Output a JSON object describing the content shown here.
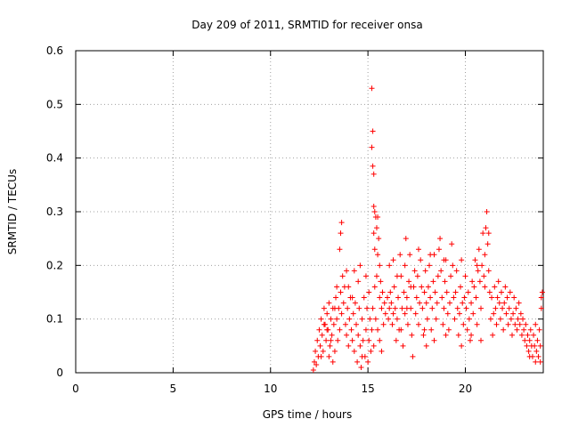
{
  "chart_data": {
    "type": "scatter",
    "title": "Day 209 of 2011, SRMTID for receiver onsa",
    "xlabel": "GPS time / hours",
    "ylabel": "SRMTID / TECUs",
    "xlim": [
      0,
      24
    ],
    "ylim": [
      0,
      0.6
    ],
    "x_ticks": [
      0,
      5,
      10,
      15,
      20
    ],
    "y_ticks": [
      0,
      0.1,
      0.2,
      0.3,
      0.4,
      0.5,
      0.6
    ],
    "x_tick_labels": [
      "0",
      "5",
      "10",
      "15",
      "20"
    ],
    "y_tick_labels": [
      "0",
      "0.1",
      "0.2",
      "0.3",
      "0.4",
      "0.5",
      "0.6"
    ],
    "grid": true,
    "marker": "+",
    "color": "#ff0000",
    "series": [
      {
        "points": [
          [
            12.2,
            0.005
          ],
          [
            12.25,
            0.02
          ],
          [
            12.3,
            0.04
          ],
          [
            12.35,
            0.015
          ],
          [
            12.4,
            0.06
          ],
          [
            12.45,
            0.03
          ],
          [
            12.5,
            0.08
          ],
          [
            12.55,
            0.05
          ],
          [
            12.6,
            0.1
          ],
          [
            12.65,
            0.07
          ],
          [
            12.7,
            0.04
          ],
          [
            12.75,
            0.12
          ],
          [
            12.8,
            0.09
          ],
          [
            12.85,
            0.06
          ],
          [
            12.9,
            0.11
          ],
          [
            12.95,
            0.08
          ],
          [
            13.0,
            0.13
          ],
          [
            13.05,
            0.05
          ],
          [
            13.1,
            0.1
          ],
          [
            13.15,
            0.07
          ],
          [
            13.2,
            0.12
          ],
          [
            13.25,
            0.09
          ],
          [
            13.3,
            0.04
          ],
          [
            13.35,
            0.14
          ],
          [
            13.4,
            0.1
          ],
          [
            13.45,
            0.06
          ],
          [
            13.5,
            0.12
          ],
          [
            13.55,
            0.08
          ],
          [
            13.6,
            0.15
          ],
          [
            13.65,
            0.11
          ],
          [
            13.7,
            0.18
          ],
          [
            13.75,
            0.13
          ],
          [
            13.8,
            0.16
          ],
          [
            13.85,
            0.09
          ],
          [
            13.9,
            0.07
          ],
          [
            13.95,
            0.12
          ],
          [
            14.0,
            0.05
          ],
          [
            14.05,
            0.1
          ],
          [
            14.1,
            0.14
          ],
          [
            14.15,
            0.08
          ],
          [
            14.2,
            0.06
          ],
          [
            14.25,
            0.11
          ],
          [
            14.3,
            0.04
          ],
          [
            14.35,
            0.13
          ],
          [
            14.4,
            0.09
          ],
          [
            14.45,
            0.02
          ],
          [
            14.5,
            0.07
          ],
          [
            14.55,
            0.12
          ],
          [
            14.6,
            0.05
          ],
          [
            14.65,
            0.01
          ],
          [
            14.7,
            0.1
          ],
          [
            14.75,
            0.06
          ],
          [
            14.8,
            0.14
          ],
          [
            14.85,
            0.03
          ],
          [
            14.9,
            0.08
          ],
          [
            14.95,
            0.12
          ],
          [
            15.0,
            0.02
          ],
          [
            15.05,
            0.06
          ],
          [
            15.1,
            0.1
          ],
          [
            15.15,
            0.04
          ],
          [
            13.6,
            0.26
          ],
          [
            13.65,
            0.28
          ],
          [
            13.55,
            0.23
          ],
          [
            13.4,
            0.16
          ],
          [
            13.0,
            0.03
          ],
          [
            13.2,
            0.02
          ],
          [
            13.9,
            0.19
          ],
          [
            14.3,
            0.19
          ],
          [
            14.0,
            0.16
          ],
          [
            14.5,
            0.17
          ],
          [
            14.9,
            0.18
          ],
          [
            14.7,
            0.03
          ],
          [
            15.05,
            0.15
          ],
          [
            14.6,
            0.2
          ],
          [
            14.2,
            0.14
          ],
          [
            13.3,
            0.12
          ],
          [
            12.9,
            0.08
          ],
          [
            12.6,
            0.03
          ],
          [
            12.75,
            0.09
          ],
          [
            13.1,
            0.06
          ],
          [
            15.2,
            0.53
          ],
          [
            15.25,
            0.45
          ],
          [
            15.2,
            0.42
          ],
          [
            15.25,
            0.385
          ],
          [
            15.3,
            0.37
          ],
          [
            15.3,
            0.31
          ],
          [
            15.35,
            0.3
          ],
          [
            15.4,
            0.29
          ],
          [
            15.45,
            0.27
          ],
          [
            15.5,
            0.29
          ],
          [
            15.3,
            0.26
          ],
          [
            15.35,
            0.23
          ],
          [
            15.5,
            0.22
          ],
          [
            15.55,
            0.25
          ],
          [
            15.6,
            0.2
          ],
          [
            15.45,
            0.18
          ],
          [
            15.35,
            0.16
          ],
          [
            15.6,
            0.14
          ],
          [
            15.7,
            0.12
          ],
          [
            15.4,
            0.1
          ],
          [
            15.5,
            0.08
          ],
          [
            15.6,
            0.06
          ],
          [
            15.7,
            0.04
          ],
          [
            15.8,
            0.09
          ],
          [
            15.3,
            0.05
          ],
          [
            15.2,
            0.08
          ],
          [
            15.25,
            0.12
          ],
          [
            15.65,
            0.17
          ],
          [
            15.75,
            0.15
          ],
          [
            15.85,
            0.13
          ],
          [
            15.9,
            0.11
          ],
          [
            16.0,
            0.14
          ],
          [
            16.05,
            0.1
          ],
          [
            16.1,
            0.12
          ],
          [
            16.15,
            0.15
          ],
          [
            16.2,
            0.13
          ],
          [
            16.25,
            0.09
          ],
          [
            16.3,
            0.11
          ],
          [
            16.35,
            0.16
          ],
          [
            16.4,
            0.12
          ],
          [
            16.45,
            0.06
          ],
          [
            16.5,
            0.1
          ],
          [
            16.55,
            0.14
          ],
          [
            16.6,
            0.08
          ],
          [
            16.65,
            0.22
          ],
          [
            16.7,
            0.18
          ],
          [
            16.75,
            0.12
          ],
          [
            16.8,
            0.05
          ],
          [
            16.85,
            0.15
          ],
          [
            16.9,
            0.2
          ],
          [
            16.95,
            0.25
          ],
          [
            17.0,
            0.14
          ],
          [
            17.05,
            0.09
          ],
          [
            17.1,
            0.17
          ],
          [
            17.15,
            0.22
          ],
          [
            17.2,
            0.12
          ],
          [
            17.25,
            0.07
          ],
          [
            17.3,
            0.03
          ],
          [
            17.35,
            0.16
          ],
          [
            17.4,
            0.19
          ],
          [
            17.45,
            0.11
          ],
          [
            17.5,
            0.14
          ],
          [
            17.55,
            0.18
          ],
          [
            17.6,
            0.09
          ],
          [
            17.65,
            0.13
          ],
          [
            17.7,
            0.21
          ],
          [
            17.75,
            0.16
          ],
          [
            17.8,
            0.12
          ],
          [
            17.85,
            0.07
          ],
          [
            17.9,
            0.15
          ],
          [
            17.95,
            0.19
          ],
          [
            18.0,
            0.13
          ],
          [
            18.05,
            0.1
          ],
          [
            18.1,
            0.16
          ],
          [
            18.15,
            0.2
          ],
          [
            18.2,
            0.14
          ],
          [
            18.25,
            0.08
          ],
          [
            18.3,
            0.12
          ],
          [
            18.35,
            0.17
          ],
          [
            18.4,
            0.22
          ],
          [
            18.45,
            0.15
          ],
          [
            18.5,
            0.1
          ],
          [
            18.55,
            0.13
          ],
          [
            18.6,
            0.18
          ],
          [
            18.65,
            0.23
          ],
          [
            18.7,
            0.25
          ],
          [
            18.75,
            0.19
          ],
          [
            18.8,
            0.14
          ],
          [
            18.85,
            0.09
          ],
          [
            18.9,
            0.12
          ],
          [
            18.95,
            0.17
          ],
          [
            19.0,
            0.21
          ],
          [
            19.05,
            0.15
          ],
          [
            19.1,
            0.11
          ],
          [
            19.15,
            0.08
          ],
          [
            19.2,
            0.13
          ],
          [
            19.25,
            0.18
          ],
          [
            19.3,
            0.24
          ],
          [
            19.35,
            0.2
          ],
          [
            19.4,
            0.14
          ],
          [
            19.45,
            0.1
          ],
          [
            19.5,
            0.15
          ],
          [
            19.55,
            0.19
          ],
          [
            19.6,
            0.12
          ],
          [
            19.65,
            0.07
          ],
          [
            19.7,
            0.11
          ],
          [
            19.75,
            0.16
          ],
          [
            19.8,
            0.21
          ],
          [
            19.85,
            0.13
          ],
          [
            19.9,
            0.09
          ],
          [
            19.95,
            0.14
          ],
          [
            20.0,
            0.18
          ],
          [
            20.05,
            0.12
          ],
          [
            20.1,
            0.08
          ],
          [
            20.15,
            0.15
          ],
          [
            20.2,
            0.1
          ],
          [
            20.25,
            0.06
          ],
          [
            20.3,
            0.13
          ],
          [
            20.35,
            0.17
          ],
          [
            20.4,
            0.11
          ],
          [
            20.45,
            0.16
          ],
          [
            20.5,
            0.21
          ],
          [
            20.55,
            0.14
          ],
          [
            20.6,
            0.09
          ],
          [
            20.65,
            0.19
          ],
          [
            20.7,
            0.23
          ],
          [
            20.75,
            0.17
          ],
          [
            20.8,
            0.12
          ],
          [
            20.85,
            0.2
          ],
          [
            20.9,
            0.26
          ],
          [
            20.95,
            0.18
          ],
          [
            21.0,
            0.22
          ],
          [
            21.05,
            0.27
          ],
          [
            21.1,
            0.3
          ],
          [
            21.15,
            0.24
          ],
          [
            21.2,
            0.19
          ],
          [
            21.25,
            0.15
          ],
          [
            21.3,
            0.1
          ],
          [
            21.35,
            0.14
          ],
          [
            21.4,
            0.07
          ],
          [
            21.45,
            0.11
          ],
          [
            21.5,
            0.16
          ],
          [
            21.55,
            0.12
          ],
          [
            21.6,
            0.09
          ],
          [
            21.65,
            0.14
          ],
          [
            21.7,
            0.17
          ],
          [
            21.75,
            0.13
          ],
          [
            21.8,
            0.1
          ],
          [
            21.85,
            0.15
          ],
          [
            21.9,
            0.12
          ],
          [
            21.95,
            0.08
          ],
          [
            22.0,
            0.13
          ],
          [
            22.05,
            0.16
          ],
          [
            22.1,
            0.11
          ],
          [
            22.15,
            0.14
          ],
          [
            22.2,
            0.09
          ],
          [
            22.25,
            0.12
          ],
          [
            22.3,
            0.15
          ],
          [
            22.35,
            0.1
          ],
          [
            22.4,
            0.07
          ],
          [
            22.45,
            0.11
          ],
          [
            22.5,
            0.14
          ],
          [
            22.55,
            0.09
          ],
          [
            22.6,
            0.12
          ],
          [
            22.65,
            0.08
          ],
          [
            22.7,
            0.1
          ],
          [
            22.75,
            0.13
          ],
          [
            22.8,
            0.09
          ],
          [
            22.85,
            0.11
          ],
          [
            22.9,
            0.07
          ],
          [
            22.95,
            0.1
          ],
          [
            23.0,
            0.08
          ],
          [
            23.05,
            0.06
          ],
          [
            23.1,
            0.09
          ],
          [
            23.15,
            0.05
          ],
          [
            23.2,
            0.07
          ],
          [
            23.25,
            0.04
          ],
          [
            23.3,
            0.06
          ],
          [
            23.35,
            0.08
          ],
          [
            23.4,
            0.05
          ],
          [
            23.45,
            0.03
          ],
          [
            23.5,
            0.07
          ],
          [
            23.55,
            0.05
          ],
          [
            23.6,
            0.09
          ],
          [
            23.65,
            0.04
          ],
          [
            23.7,
            0.06
          ],
          [
            23.75,
            0.03
          ],
          [
            23.8,
            0.08
          ],
          [
            23.85,
            0.05
          ],
          [
            23.9,
            0.12
          ],
          [
            23.95,
            0.15
          ],
          [
            23.9,
            0.14
          ],
          [
            23.85,
            0.02
          ],
          [
            23.6,
            0.02
          ],
          [
            23.3,
            0.03
          ],
          [
            16.3,
            0.21
          ],
          [
            16.1,
            0.2
          ],
          [
            17.0,
            0.12
          ],
          [
            17.2,
            0.16
          ],
          [
            18.0,
            0.05
          ],
          [
            18.4,
            0.06
          ],
          [
            19.0,
            0.07
          ],
          [
            19.8,
            0.05
          ],
          [
            20.3,
            0.07
          ],
          [
            20.8,
            0.06
          ],
          [
            21.0,
            0.16
          ],
          [
            21.2,
            0.26
          ],
          [
            20.6,
            0.2
          ],
          [
            18.9,
            0.21
          ],
          [
            18.2,
            0.22
          ],
          [
            17.6,
            0.23
          ],
          [
            16.9,
            0.11
          ],
          [
            16.5,
            0.18
          ],
          [
            16.7,
            0.08
          ],
          [
            17.9,
            0.08
          ]
        ]
      }
    ]
  }
}
